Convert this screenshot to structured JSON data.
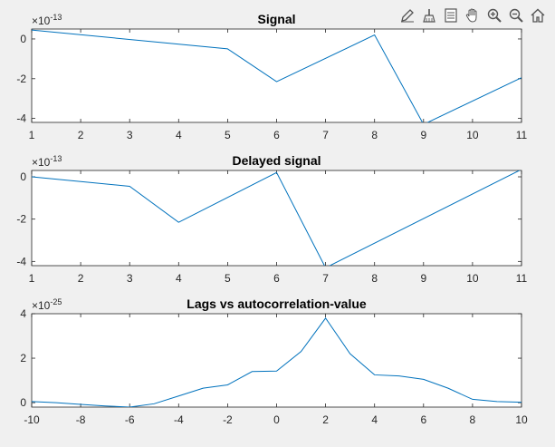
{
  "toolbar": {
    "icons": [
      "edit-icon",
      "brush-icon",
      "legend-icon",
      "pan-hand-icon",
      "zoom-in-icon",
      "zoom-out-icon",
      "home-icon"
    ]
  },
  "colors": {
    "line": "#0072bd",
    "axes_bg": "#ffffff",
    "figure_bg": "#f0f0f0",
    "axis": "#262626"
  },
  "chart_data": [
    {
      "type": "line",
      "title": "Signal",
      "exponent_label": "×10",
      "exponent_power": "-13",
      "x": [
        1,
        5,
        6,
        8,
        9,
        11
      ],
      "y": [
        0.45,
        -0.5,
        -2.15,
        0.2,
        -4.3,
        -1.95
      ],
      "xlim": [
        1,
        11
      ],
      "ylim": [
        -4.2,
        0.5
      ],
      "xticks": [
        "1",
        "2",
        "3",
        "4",
        "5",
        "6",
        "7",
        "8",
        "9",
        "10",
        "11"
      ],
      "xtick_values": [
        1,
        2,
        3,
        4,
        5,
        6,
        7,
        8,
        9,
        10,
        11
      ],
      "yticks": [
        "0",
        "-2",
        "-4"
      ],
      "ytick_values": [
        0,
        -2,
        -4
      ],
      "grid": false
    },
    {
      "type": "line",
      "title": "Delayed signal",
      "exponent_label": "×10",
      "exponent_power": "-13",
      "x": [
        1,
        3,
        4,
        6,
        7,
        11
      ],
      "y": [
        0.0,
        -0.45,
        -2.15,
        0.2,
        -4.3,
        0.35
      ],
      "xlim": [
        1,
        11
      ],
      "ylim": [
        -4.2,
        0.3
      ],
      "xticks": [
        "1",
        "2",
        "3",
        "4",
        "5",
        "6",
        "7",
        "8",
        "9",
        "10",
        "11"
      ],
      "xtick_values": [
        1,
        2,
        3,
        4,
        5,
        6,
        7,
        8,
        9,
        10,
        11
      ],
      "yticks": [
        "0",
        "-2",
        "-4"
      ],
      "ytick_values": [
        0,
        -2,
        -4
      ],
      "grid": false
    },
    {
      "type": "line",
      "title": "Lags vs autocorrelation-value",
      "exponent_label": "×10",
      "exponent_power": "-25",
      "x": [
        -10,
        -9,
        -8,
        -7,
        -6,
        -5,
        -4,
        -3,
        -2,
        -1,
        0,
        1,
        2,
        3,
        4,
        5,
        6,
        7,
        8,
        9,
        10
      ],
      "y": [
        0.05,
        0.0,
        -0.08,
        -0.15,
        -0.2,
        -0.05,
        0.3,
        0.65,
        0.8,
        1.4,
        1.42,
        2.3,
        3.8,
        2.2,
        1.25,
        1.2,
        1.05,
        0.65,
        0.15,
        0.05,
        0.02
      ],
      "xlim": [
        -10,
        10
      ],
      "ylim": [
        -0.2,
        4
      ],
      "xticks": [
        "-10",
        "-8",
        "-6",
        "-4",
        "-2",
        "0",
        "2",
        "4",
        "6",
        "8",
        "10"
      ],
      "xtick_values": [
        -10,
        -8,
        -6,
        -4,
        -2,
        0,
        2,
        4,
        6,
        8,
        10
      ],
      "yticks": [
        "0",
        "2",
        "4"
      ],
      "ytick_values": [
        0,
        2,
        4
      ],
      "grid": false
    }
  ]
}
